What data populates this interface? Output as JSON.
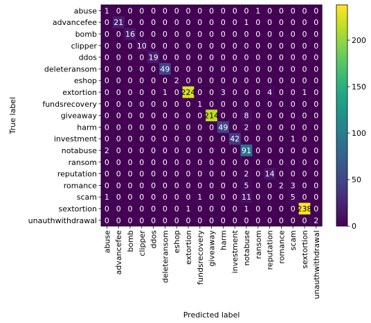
{
  "chart_data": {
    "type": "heatmap",
    "title": "",
    "xlabel": "Predicted label",
    "ylabel": "True label",
    "labels": [
      "abuse",
      "advancefee",
      "bomb",
      "clipper",
      "ddos",
      "deleteransom",
      "eshop",
      "extortion",
      "fundsrecovery",
      "giveaway",
      "harm",
      "investment",
      "notabuse",
      "ransom",
      "reputation",
      "romance",
      "scam",
      "sextortion",
      "unauthwithdrawal"
    ],
    "matrix": [
      [
        1,
        0,
        0,
        0,
        0,
        0,
        0,
        0,
        0,
        0,
        0,
        0,
        0,
        1,
        0,
        0,
        0,
        0,
        0
      ],
      [
        0,
        21,
        0,
        0,
        0,
        0,
        0,
        0,
        0,
        0,
        0,
        0,
        1,
        0,
        0,
        0,
        0,
        0,
        0
      ],
      [
        0,
        0,
        16,
        0,
        0,
        0,
        0,
        0,
        0,
        0,
        0,
        0,
        0,
        0,
        0,
        0,
        0,
        0,
        0
      ],
      [
        0,
        0,
        0,
        10,
        0,
        0,
        0,
        0,
        0,
        0,
        0,
        0,
        0,
        0,
        0,
        0,
        0,
        0,
        0
      ],
      [
        0,
        0,
        0,
        0,
        19,
        0,
        0,
        0,
        0,
        0,
        0,
        0,
        0,
        0,
        0,
        0,
        0,
        0,
        0
      ],
      [
        0,
        0,
        0,
        0,
        0,
        49,
        0,
        0,
        0,
        0,
        0,
        0,
        0,
        0,
        0,
        0,
        0,
        0,
        0
      ],
      [
        0,
        0,
        0,
        0,
        0,
        0,
        2,
        0,
        0,
        0,
        0,
        0,
        0,
        0,
        0,
        0,
        0,
        0,
        0
      ],
      [
        0,
        0,
        0,
        0,
        0,
        1,
        0,
        224,
        0,
        0,
        3,
        0,
        0,
        0,
        4,
        0,
        0,
        1,
        0
      ],
      [
        0,
        0,
        0,
        0,
        0,
        0,
        0,
        0,
        1,
        0,
        0,
        0,
        0,
        0,
        0,
        0,
        0,
        0,
        0
      ],
      [
        0,
        0,
        0,
        0,
        0,
        0,
        0,
        0,
        0,
        214,
        0,
        0,
        8,
        0,
        0,
        0,
        0,
        0,
        0
      ],
      [
        0,
        0,
        0,
        0,
        0,
        0,
        0,
        0,
        0,
        0,
        49,
        0,
        2,
        0,
        0,
        0,
        0,
        0,
        0
      ],
      [
        0,
        0,
        0,
        0,
        0,
        0,
        0,
        0,
        0,
        0,
        0,
        42,
        0,
        0,
        0,
        0,
        1,
        0,
        0
      ],
      [
        2,
        0,
        0,
        0,
        0,
        0,
        0,
        0,
        0,
        0,
        0,
        0,
        91,
        0,
        0,
        0,
        0,
        0,
        0
      ],
      [
        0,
        0,
        0,
        0,
        0,
        0,
        0,
        0,
        0,
        0,
        0,
        0,
        0,
        0,
        0,
        0,
        0,
        0,
        0
      ],
      [
        0,
        0,
        0,
        0,
        0,
        0,
        0,
        0,
        0,
        0,
        0,
        0,
        2,
        0,
        14,
        0,
        0,
        0,
        0
      ],
      [
        0,
        0,
        0,
        0,
        0,
        0,
        0,
        0,
        0,
        0,
        0,
        0,
        5,
        0,
        0,
        2,
        3,
        0,
        0
      ],
      [
        1,
        0,
        0,
        0,
        0,
        0,
        0,
        0,
        1,
        0,
        0,
        0,
        11,
        0,
        0,
        0,
        5,
        0,
        0
      ],
      [
        0,
        0,
        0,
        0,
        0,
        0,
        0,
        1,
        0,
        0,
        0,
        0,
        1,
        0,
        0,
        0,
        0,
        238,
        0
      ],
      [
        0,
        0,
        0,
        0,
        0,
        0,
        0,
        0,
        0,
        0,
        0,
        0,
        0,
        0,
        0,
        0,
        0,
        0,
        2
      ]
    ],
    "colormap": "viridis",
    "vmin": 0,
    "vmax": 238,
    "colorbar_ticks": [
      "0",
      "50",
      "100",
      "150",
      "200"
    ],
    "colorbar_tick_values": [
      0,
      50,
      100,
      150,
      200
    ],
    "grid": false
  }
}
